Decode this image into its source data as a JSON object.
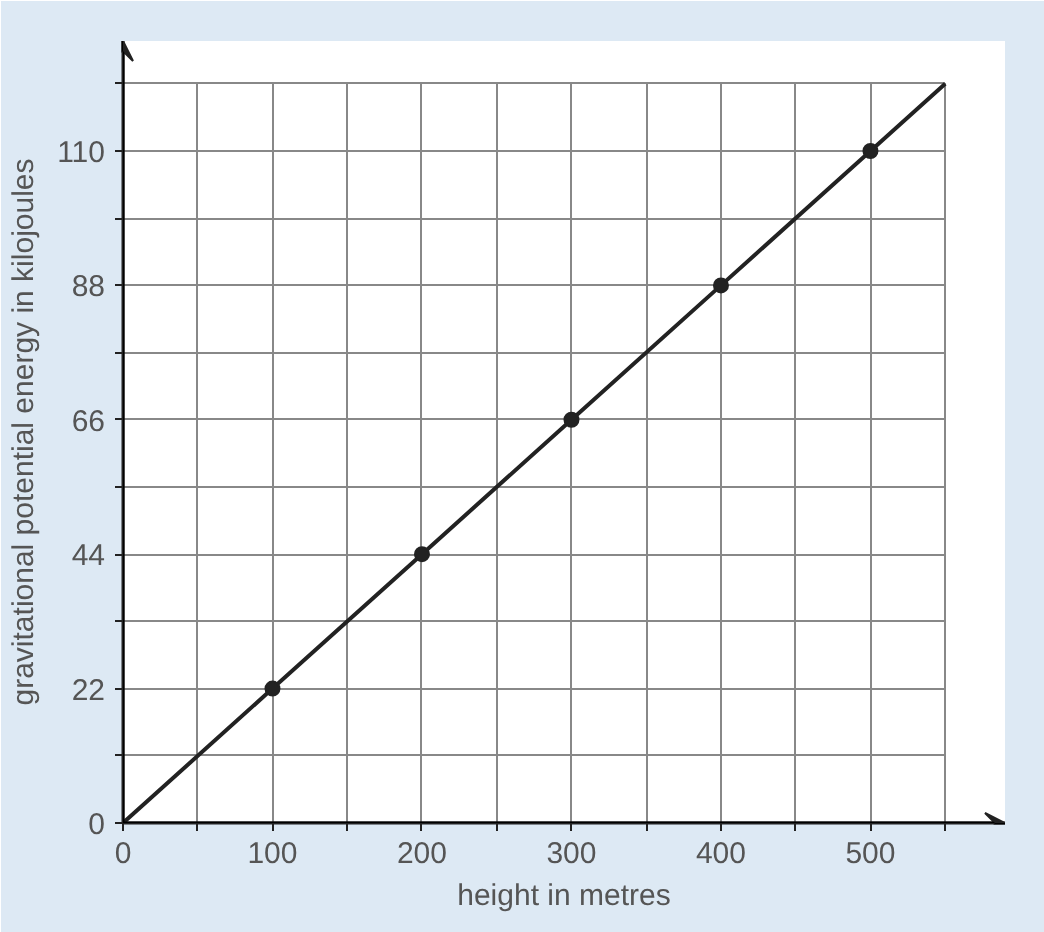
{
  "chart_data": {
    "type": "line",
    "xlabel": "height in metres",
    "ylabel": "gravitational potential energy in kilojoules",
    "series": [
      {
        "color": "#222222",
        "marker": "none",
        "x": [
          0,
          100,
          200,
          300,
          400,
          500,
          550
        ],
        "values": [
          0,
          22,
          44,
          66,
          88,
          110,
          121
        ]
      },
      {
        "type": "scatter",
        "color": "#222222",
        "marker": "circle",
        "x": [
          100,
          200,
          300,
          400,
          500
        ],
        "values": [
          22,
          44,
          66,
          88,
          110
        ]
      }
    ],
    "xlim": [
      0,
      590
    ],
    "ylim": [
      0,
      128
    ],
    "xticks": [
      0,
      {
        "value": 50,
        "label": null
      },
      100,
      {
        "value": 150,
        "label": null
      },
      200,
      {
        "value": 250,
        "label": null
      },
      300,
      {
        "value": 350,
        "label": null
      },
      400,
      {
        "value": 450,
        "label": null
      },
      500,
      {
        "value": 550,
        "label": null
      }
    ],
    "yticks": [
      0,
      {
        "value": 11,
        "label": null
      },
      22,
      {
        "value": 33,
        "label": null
      },
      44,
      {
        "value": 55,
        "label": null
      },
      66,
      {
        "value": 77,
        "label": null
      },
      88,
      {
        "value": 99,
        "label": null
      },
      110,
      {
        "value": 121,
        "label": null
      }
    ],
    "grid": true
  }
}
